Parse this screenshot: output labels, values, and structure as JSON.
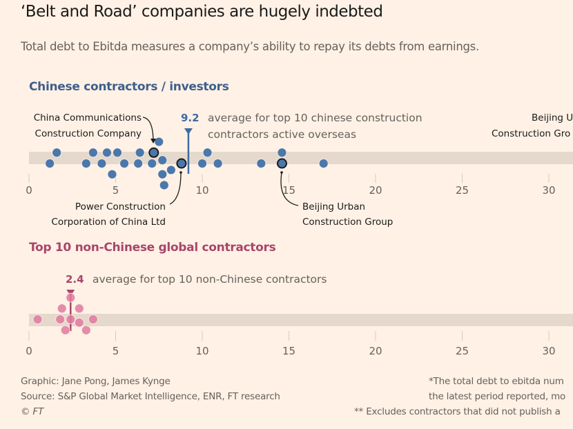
{
  "header": {
    "title": "‘Belt and Road’ companies are hugely indebted",
    "subtitle": "Total debt to Ebitda measures a company’s ability to repay its debts from earnings."
  },
  "colors": {
    "background": "#fff1e5",
    "band": "#e5d8cd",
    "chinese": "#3d6ba3",
    "chinese_dot": "#4a78ab",
    "non_chinese": "#a8466b",
    "non_chinese_dot": "#e07aa0",
    "highlight_stroke": "#1a1a1a"
  },
  "chart_data": [
    {
      "type": "scatter",
      "title": "Chinese contractors / investors",
      "xlabel": "Total debt to Ebitda",
      "xlim": [
        0,
        31
      ],
      "xticks": [
        "0",
        "5",
        "10",
        "15",
        "20",
        "25",
        "30"
      ],
      "xtick_values": [
        0,
        5,
        10,
        15,
        20,
        25,
        30
      ],
      "average": {
        "value": 9.2,
        "label": "9.2",
        "text_line1": "average for top 10 chinese construction",
        "text_line2": "contractors active overseas"
      },
      "points": [
        {
          "x": 1.2,
          "row": 0
        },
        {
          "x": 1.6,
          "row": 1
        },
        {
          "x": 3.3,
          "row": 0
        },
        {
          "x": 3.7,
          "row": 1
        },
        {
          "x": 4.2,
          "row": 0
        },
        {
          "x": 4.5,
          "row": 1
        },
        {
          "x": 4.8,
          "row": -1
        },
        {
          "x": 5.1,
          "row": 1
        },
        {
          "x": 5.5,
          "row": 0
        },
        {
          "x": 6.3,
          "row": 0
        },
        {
          "x": 6.4,
          "row": 1
        },
        {
          "x": 7.1,
          "row": 0
        },
        {
          "x": 7.2,
          "row": 1,
          "highlight": true,
          "label": "China Communications Construction Company"
        },
        {
          "x": 7.5,
          "row": 2
        },
        {
          "x": 7.7,
          "row": -1
        },
        {
          "x": 7.8,
          "row": -2
        },
        {
          "x": 7.7,
          "row": 0.3
        },
        {
          "x": 8.2,
          "row": -0.6
        },
        {
          "x": 8.8,
          "row": 0,
          "highlight": true,
          "label": "Power Construction Corporation of China Ltd"
        },
        {
          "x": 10.0,
          "row": 0
        },
        {
          "x": 10.3,
          "row": 1
        },
        {
          "x": 10.9,
          "row": 0
        },
        {
          "x": 13.4,
          "row": 0
        },
        {
          "x": 14.6,
          "row": 1
        },
        {
          "x": 14.6,
          "row": 0,
          "highlight": true,
          "label": "Beijing Urban Construction Group"
        },
        {
          "x": 17.0,
          "row": 0
        }
      ],
      "annotations": [
        {
          "name": "cccc",
          "line1": "China Communications",
          "line2": "Construction Company"
        },
        {
          "name": "powerchina",
          "line1": "Power Construction",
          "line2": "Corporation of China Ltd"
        },
        {
          "name": "bucg",
          "line1": "Beijing Urban",
          "line2": "Construction Group"
        },
        {
          "name": "bucg-right",
          "line1": "Beijing U",
          "line2": "Construction Gro"
        }
      ]
    },
    {
      "type": "scatter",
      "title": "Top 10 non-Chinese global contractors",
      "xlabel": "Total debt to Ebitda",
      "xlim": [
        0,
        31
      ],
      "xticks": [
        "0",
        "5",
        "10",
        "15",
        "20",
        "25",
        "30"
      ],
      "xtick_values": [
        0,
        5,
        10,
        15,
        20,
        25,
        30
      ],
      "average": {
        "value": 2.4,
        "label": "2.4",
        "text_line1": "average for top 10 non-Chinese contractors"
      },
      "points": [
        {
          "x": 0.5,
          "row": 0
        },
        {
          "x": 1.8,
          "row": 0
        },
        {
          "x": 1.9,
          "row": 1
        },
        {
          "x": 2.1,
          "row": -1
        },
        {
          "x": 2.4,
          "row": 0
        },
        {
          "x": 2.4,
          "row": 2
        },
        {
          "x": 2.9,
          "row": 1
        },
        {
          "x": 2.9,
          "row": -0.3
        },
        {
          "x": 3.3,
          "row": -1
        },
        {
          "x": 3.7,
          "row": 0
        }
      ]
    }
  ],
  "footer": {
    "graphic": "Graphic: Jane Pong, James Kynge",
    "source": "Source: S&P Global Market Intelligence, ENR, FT research",
    "copyright": "© FT",
    "note1_line1": "*The total debt to ebitda num",
    "note1_line2": "the latest period reported, mo",
    "note2": "** Excludes contractors that did not publish a"
  }
}
